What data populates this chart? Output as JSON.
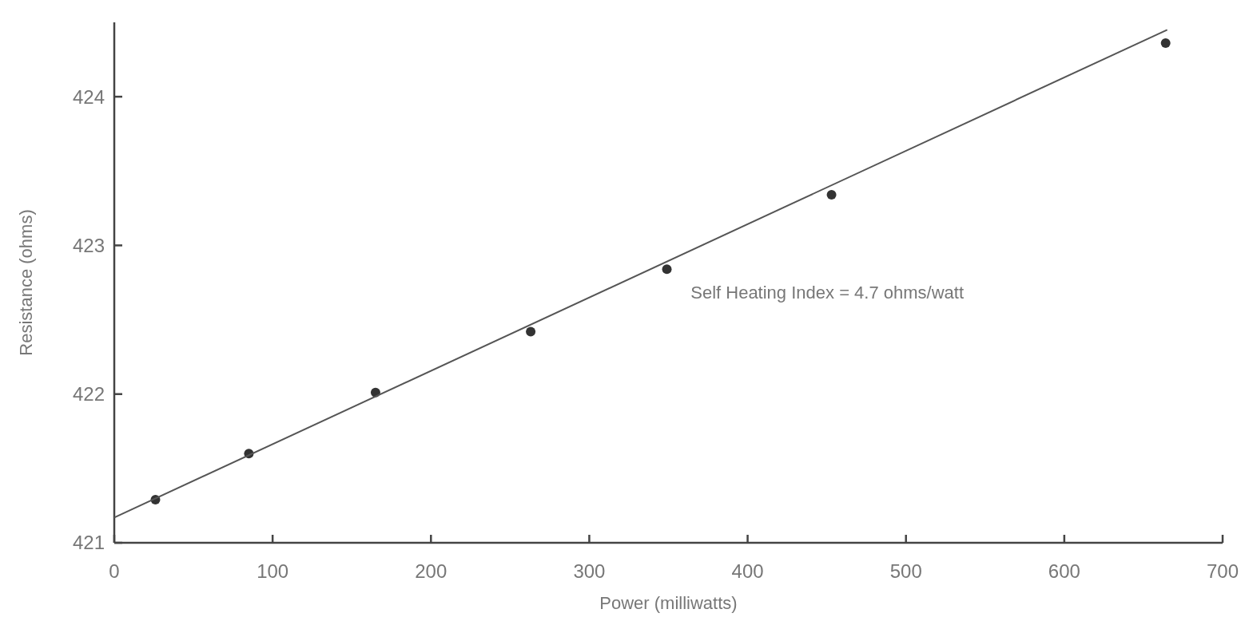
{
  "chart_data": {
    "type": "scatter",
    "xlabel": "Power (milliwatts)",
    "ylabel": "Resistance (ohms)",
    "annotations": [
      "Self Heating Index = 4.7 ohms/watt"
    ],
    "xlim": [
      0,
      700
    ],
    "xticks": [
      0,
      100,
      200,
      300,
      400,
      500,
      600,
      700
    ],
    "ylim": [
      421,
      424.5
    ],
    "yticks": [
      421,
      422,
      423,
      424
    ],
    "grid": false,
    "series": [
      {
        "marker": "circle",
        "color": "#333333",
        "x": [
          26,
          85,
          165,
          263,
          349,
          453,
          664
        ],
        "values": [
          421.29,
          421.6,
          422.01,
          422.42,
          422.84,
          423.34,
          424.36
        ]
      },
      {
        "type": "line",
        "color": "#555555",
        "line_style": "solid",
        "x": [
          0,
          665
        ],
        "values": [
          421.17,
          424.45
        ]
      }
    ]
  }
}
